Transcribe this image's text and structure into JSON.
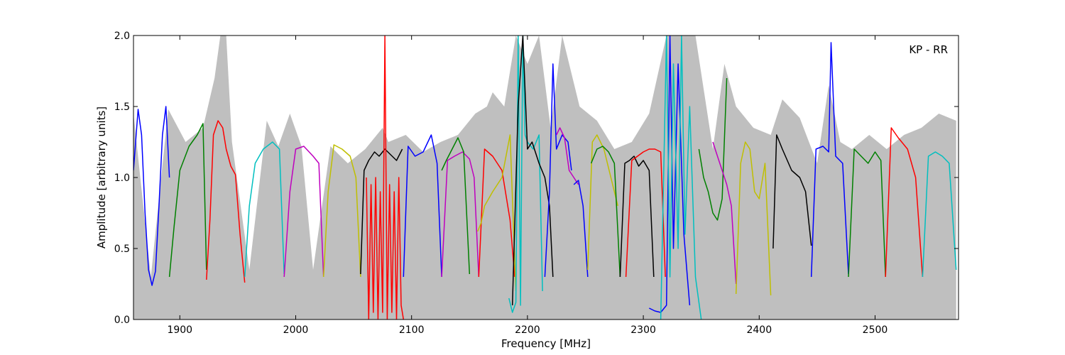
{
  "chart_data": {
    "type": "line",
    "annotation": "KP - RR",
    "xlabel": "Frequency [MHz]",
    "ylabel": "Amplitude [arbitrary units]",
    "xlim": [
      1860,
      2572
    ],
    "ylim": [
      0.0,
      2.0
    ],
    "xticks": [
      1900,
      2000,
      2100,
      2200,
      2300,
      2400,
      2500
    ],
    "xtick_labels": [
      "1900",
      "2000",
      "2100",
      "2200",
      "2300",
      "2400",
      "2500"
    ],
    "yticks": [
      0.0,
      0.5,
      1.0,
      1.5,
      2.0
    ],
    "ytick_labels": [
      "0.0",
      "0.5",
      "1.0",
      "1.5",
      "2.0"
    ],
    "grid": false,
    "envelope": {
      "color": "#bfbfbf",
      "x": [
        1860,
        1875,
        1890,
        1905,
        1920,
        1930,
        1935,
        1940,
        1945,
        1960,
        1975,
        1985,
        1995,
        2005,
        2015,
        2030,
        2045,
        2060,
        2075,
        2080,
        2095,
        2110,
        2125,
        2140,
        2155,
        2165,
        2170,
        2180,
        2190,
        2200,
        2210,
        2220,
        2230,
        2245,
        2260,
        2275,
        2290,
        2305,
        2320,
        2330,
        2345,
        2360,
        2370,
        2380,
        2395,
        2410,
        2420,
        2435,
        2450,
        2460,
        2470,
        2480,
        2495,
        2510,
        2525,
        2540,
        2555,
        2570
      ],
      "y": [
        1.45,
        0.3,
        1.48,
        1.25,
        1.35,
        1.7,
        2.0,
        2.0,
        1.25,
        0.35,
        1.4,
        1.22,
        1.45,
        1.22,
        0.35,
        1.22,
        1.1,
        1.2,
        1.35,
        1.25,
        1.3,
        1.18,
        1.25,
        1.3,
        1.45,
        1.5,
        1.6,
        1.5,
        2.0,
        1.8,
        2.0,
        1.35,
        2.0,
        1.5,
        1.4,
        1.2,
        1.25,
        1.45,
        2.0,
        2.0,
        2.0,
        1.2,
        1.8,
        1.5,
        1.35,
        1.3,
        1.55,
        1.42,
        1.1,
        1.65,
        1.25,
        1.2,
        1.3,
        1.2,
        1.3,
        1.35,
        1.45,
        1.4
      ]
    },
    "series": [
      {
        "color": "#0000ff",
        "x": [
          1860,
          1864,
          1867,
          1870,
          1873,
          1876,
          1879,
          1882,
          1885,
          1888,
          1891
        ],
        "y": [
          1.05,
          1.48,
          1.3,
          0.75,
          0.35,
          0.24,
          0.34,
          0.8,
          1.3,
          1.5,
          1.0
        ]
      },
      {
        "color": "#008000",
        "x": [
          1891,
          1895,
          1900,
          1908,
          1915,
          1920,
          1923
        ],
        "y": [
          0.3,
          0.65,
          1.05,
          1.22,
          1.3,
          1.38,
          0.35
        ]
      },
      {
        "color": "#ff0000",
        "x": [
          1923,
          1926,
          1929,
          1933,
          1937,
          1940,
          1944,
          1948,
          1952,
          1956
        ],
        "y": [
          0.28,
          0.7,
          1.3,
          1.4,
          1.35,
          1.2,
          1.08,
          1.02,
          0.6,
          0.26
        ]
      },
      {
        "color": "#00bfbf",
        "x": [
          1956,
          1960,
          1965,
          1972,
          1980,
          1986,
          1990
        ],
        "y": [
          0.3,
          0.8,
          1.1,
          1.2,
          1.25,
          1.2,
          0.32
        ]
      },
      {
        "color": "#bf00bf",
        "x": [
          1990,
          1995,
          2000,
          2007,
          2015,
          2020,
          2024
        ],
        "y": [
          0.3,
          0.9,
          1.2,
          1.22,
          1.15,
          1.1,
          0.3
        ]
      },
      {
        "color": "#bfbf00",
        "x": [
          2024,
          2028,
          2033,
          2040,
          2047,
          2052,
          2056
        ],
        "y": [
          0.3,
          0.9,
          1.23,
          1.2,
          1.15,
          1.0,
          0.3
        ]
      },
      {
        "color": "#000000",
        "x": [
          2056,
          2059,
          2063,
          2068,
          2072,
          2077,
          2082,
          2087,
          2092
        ],
        "y": [
          0.32,
          1.05,
          1.12,
          1.18,
          1.15,
          1.2,
          1.16,
          1.12,
          1.2
        ]
      },
      {
        "color": "#ff0000",
        "x": [
          2061,
          2063,
          2065,
          2067,
          2069,
          2071,
          2073,
          2075,
          2077,
          2079,
          2081,
          2083,
          2085,
          2087,
          2089,
          2091,
          2093
        ],
        "y": [
          1.0,
          0.0,
          0.95,
          0.05,
          1.0,
          0.0,
          0.9,
          0.05,
          2.0,
          0.0,
          0.95,
          0.05,
          0.9,
          0.0,
          1.0,
          0.1,
          0.0
        ]
      },
      {
        "color": "#0000ff",
        "x": [
          2093,
          2097,
          2103,
          2110,
          2117,
          2122,
          2126
        ],
        "y": [
          0.3,
          1.22,
          1.15,
          1.18,
          1.3,
          1.1,
          0.3
        ]
      },
      {
        "color": "#bf00bf",
        "x": [
          2126,
          2131,
          2137,
          2144,
          2150,
          2154,
          2158
        ],
        "y": [
          0.3,
          1.12,
          1.15,
          1.18,
          1.13,
          1.0,
          0.3
        ]
      },
      {
        "color": "#008000",
        "x": [
          2126,
          2130,
          2135,
          2140,
          2145,
          2150
        ],
        "y": [
          1.05,
          1.12,
          1.2,
          1.28,
          1.18,
          0.32
        ]
      },
      {
        "color": "#ff0000",
        "x": [
          2158,
          2163,
          2170,
          2178,
          2185,
          2189
        ],
        "y": [
          0.3,
          1.2,
          1.15,
          1.05,
          0.7,
          0.3
        ]
      },
      {
        "color": "#bfbf00",
        "x": [
          2157,
          2160,
          2163,
          2170,
          2178,
          2185,
          2190
        ],
        "y": [
          0.62,
          0.68,
          0.8,
          0.9,
          1.0,
          1.3,
          0.2
        ]
      },
      {
        "color": "#00bfbf",
        "x": [
          2184,
          2187,
          2190,
          2192,
          2194,
          2196,
          2198,
          2200,
          2205,
          2210,
          2213
        ],
        "y": [
          0.15,
          0.05,
          0.12,
          2.0,
          0.1,
          2.0,
          1.3,
          1.25,
          1.2,
          1.3,
          0.2
        ]
      },
      {
        "color": "#000000",
        "x": [
          2187,
          2192,
          2196,
          2200,
          2204,
          2210,
          2215,
          2219,
          2222
        ],
        "y": [
          0.1,
          1.5,
          2.0,
          1.2,
          1.25,
          1.1,
          1.0,
          0.8,
          0.3
        ]
      },
      {
        "color": "#0000ff",
        "x": [
          2215,
          2219,
          2222,
          2225,
          2230,
          2235,
          2238
        ],
        "y": [
          0.3,
          0.9,
          1.8,
          1.2,
          1.3,
          1.25,
          1.05
        ]
      },
      {
        "color": "#bf00bf",
        "x": [
          2225,
          2228,
          2232,
          2236,
          2240,
          2244
        ],
        "y": [
          1.3,
          1.35,
          1.28,
          1.05,
          1.0,
          0.95
        ]
      },
      {
        "color": "#0000ff",
        "x": [
          2240,
          2244,
          2248,
          2252
        ],
        "y": [
          0.95,
          0.98,
          0.8,
          0.3
        ]
      },
      {
        "color": "#bfbf00",
        "x": [
          2252,
          2256,
          2260,
          2266,
          2272,
          2278
        ],
        "y": [
          0.35,
          1.25,
          1.3,
          1.2,
          1.0,
          0.8
        ]
      },
      {
        "color": "#008000",
        "x": [
          2255,
          2260,
          2265,
          2270,
          2275,
          2280
        ],
        "y": [
          1.1,
          1.2,
          1.22,
          1.18,
          1.1,
          0.3
        ]
      },
      {
        "color": "#000000",
        "x": [
          2280,
          2284,
          2288,
          2292,
          2296,
          2300,
          2305,
          2309
        ],
        "y": [
          0.3,
          1.1,
          1.12,
          1.15,
          1.08,
          1.12,
          1.05,
          0.3
        ]
      },
      {
        "color": "#ff0000",
        "x": [
          2285,
          2290,
          2295,
          2300,
          2305,
          2310,
          2315,
          2319
        ],
        "y": [
          0.3,
          1.12,
          1.15,
          1.18,
          1.2,
          1.2,
          1.18,
          0.3
        ]
      },
      {
        "color": "#0000ff",
        "x": [
          2305,
          2310,
          2315,
          2320,
          2323,
          2326,
          2330,
          2335,
          2340
        ],
        "y": [
          0.08,
          0.06,
          0.05,
          0.1,
          2.0,
          0.5,
          1.8,
          0.6,
          0.1
        ]
      },
      {
        "color": "#00bfbf",
        "x": [
          2315,
          2320,
          2323,
          2326,
          2330,
          2333,
          2336,
          2340,
          2345,
          2350
        ],
        "y": [
          0.0,
          2.0,
          0.3,
          1.8,
          0.5,
          2.0,
          0.6,
          1.5,
          0.3,
          0.0
        ]
      },
      {
        "color": "#008000",
        "x": [
          2348,
          2352,
          2356,
          2360,
          2364,
          2368,
          2372
        ],
        "y": [
          1.2,
          1.0,
          0.9,
          0.75,
          0.7,
          0.85,
          1.7
        ]
      },
      {
        "color": "#bf00bf",
        "x": [
          2360,
          2364,
          2368,
          2372,
          2376,
          2380
        ],
        "y": [
          1.25,
          1.15,
          1.05,
          0.95,
          0.8,
          0.25
        ]
      },
      {
        "color": "#bfbf00",
        "x": [
          2380,
          2384,
          2388,
          2392,
          2396,
          2400,
          2405,
          2410
        ],
        "y": [
          0.18,
          1.1,
          1.25,
          1.2,
          0.9,
          0.85,
          1.1,
          0.17
        ]
      },
      {
        "color": "#000000",
        "x": [
          2412,
          2415,
          2420,
          2428,
          2435,
          2440,
          2445
        ],
        "y": [
          0.5,
          1.3,
          1.2,
          1.05,
          1.0,
          0.9,
          0.52
        ]
      },
      {
        "color": "#0000ff",
        "x": [
          2445,
          2449,
          2455,
          2460,
          2462,
          2466,
          2472,
          2477
        ],
        "y": [
          0.3,
          1.2,
          1.22,
          1.18,
          1.95,
          1.15,
          1.1,
          0.32
        ]
      },
      {
        "color": "#008000",
        "x": [
          2477,
          2482,
          2488,
          2494,
          2500,
          2505,
          2509
        ],
        "y": [
          0.3,
          1.2,
          1.15,
          1.1,
          1.18,
          1.12,
          0.3
        ]
      },
      {
        "color": "#ff0000",
        "x": [
          2509,
          2514,
          2520,
          2528,
          2535,
          2541
        ],
        "y": [
          0.3,
          1.35,
          1.28,
          1.2,
          1.0,
          0.3
        ]
      },
      {
        "color": "#00bfbf",
        "x": [
          2541,
          2546,
          2552,
          2558,
          2564,
          2570
        ],
        "y": [
          0.3,
          1.15,
          1.18,
          1.15,
          1.1,
          0.35
        ]
      }
    ]
  }
}
